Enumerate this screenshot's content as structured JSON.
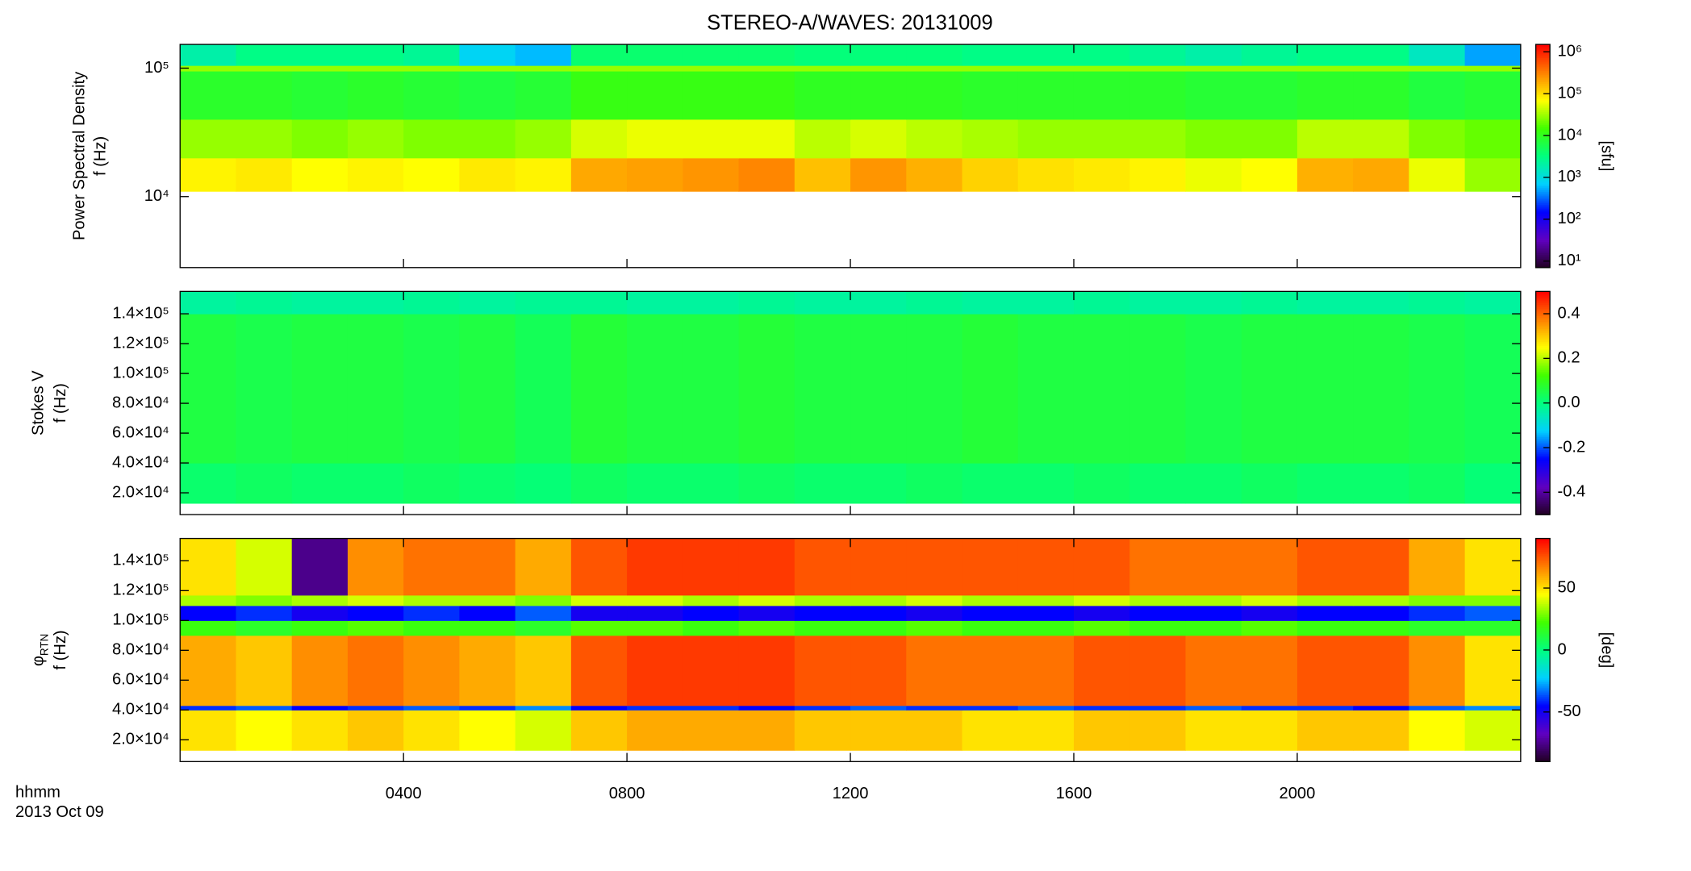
{
  "chart_data": [
    {
      "type": "heatmap",
      "title": "STEREO-A/WAVES: 20131009",
      "ylabel": "Power Spectral Density",
      "ylabel2": "f (Hz)",
      "yscale": "log",
      "ylim": [
        2800,
        153000
      ],
      "yticks": [
        {
          "value": 10000,
          "label": "10⁴"
        },
        {
          "value": 100000,
          "label": "10⁵"
        }
      ],
      "xlim": [
        0,
        24
      ],
      "x_bins": [
        0,
        1,
        2,
        3,
        4,
        5,
        6,
        7,
        8,
        9,
        10,
        11,
        12,
        13,
        14,
        15,
        16,
        17,
        18,
        19,
        20,
        21,
        22,
        23,
        24
      ],
      "y_bins": [
        11000,
        20000,
        40000,
        95000,
        105000,
        153000
      ],
      "z": [
        [
          80000,
          90000,
          70000,
          80000,
          70000,
          90000,
          80000,
          200000,
          220000,
          250000,
          300000,
          150000,
          250000,
          180000,
          120000,
          100000,
          90000,
          80000,
          60000,
          70000,
          180000,
          200000,
          60000,
          30000
        ],
        [
          30000,
          30000,
          25000,
          30000,
          25000,
          25000,
          30000,
          50000,
          60000,
          60000,
          60000,
          40000,
          50000,
          40000,
          35000,
          30000,
          30000,
          30000,
          25000,
          25000,
          40000,
          40000,
          25000,
          20000
        ],
        [
          9000,
          9000,
          8000,
          9000,
          8000,
          7000,
          8000,
          12000,
          12000,
          12000,
          12000,
          10000,
          10000,
          10000,
          9000,
          9000,
          9000,
          9000,
          8000,
          8000,
          9000,
          9000,
          7000,
          8000
        ],
        [
          30000,
          30000,
          30000,
          30000,
          30000,
          30000,
          30000,
          30000,
          30000,
          30000,
          30000,
          30000,
          30000,
          30000,
          30000,
          30000,
          30000,
          30000,
          30000,
          30000,
          30000,
          30000,
          30000,
          30000
        ],
        [
          2000,
          3000,
          3000,
          3000,
          2500,
          800,
          600,
          4000,
          4000,
          4000,
          4000,
          3500,
          3500,
          3500,
          3000,
          3000,
          3000,
          2500,
          2000,
          2500,
          3000,
          3000,
          1500,
          500
        ]
      ],
      "colormap": [
        "#200020",
        "#6000c0",
        "#0000ff",
        "#00d0ff",
        "#00ff80",
        "#40ff00",
        "#ffff00",
        "#ff8000",
        "#ff0000"
      ],
      "colorbar": {
        "scale": "log",
        "lim": [
          7,
          1500000
        ],
        "label": "[sfu]",
        "ticks": [
          {
            "value": 10,
            "label": "10¹"
          },
          {
            "value": 100,
            "label": "10²"
          },
          {
            "value": 1000,
            "label": "10³"
          },
          {
            "value": 10000,
            "label": "10⁴"
          },
          {
            "value": 100000,
            "label": "10⁵"
          },
          {
            "value": 1000000,
            "label": "10⁶"
          }
        ]
      }
    },
    {
      "type": "heatmap",
      "ylabel": "Stokes V",
      "ylabel2": "f (Hz)",
      "yscale": "linear",
      "ylim": [
        5400,
        155000
      ],
      "yticks": [
        {
          "value": 20000,
          "label": "2.0×10⁴"
        },
        {
          "value": 40000,
          "label": "4.0×10⁴"
        },
        {
          "value": 60000,
          "label": "6.0×10⁴"
        },
        {
          "value": 80000,
          "label": "8.0×10⁴"
        },
        {
          "value": 100000,
          "label": "1.0×10⁵"
        },
        {
          "value": 120000,
          "label": "1.2×10⁵"
        },
        {
          "value": 140000,
          "label": "1.4×10⁵"
        }
      ],
      "xlim": [
        0,
        24
      ],
      "x_bins": [
        0,
        1,
        2,
        3,
        4,
        5,
        6,
        7,
        8,
        9,
        10,
        11,
        12,
        13,
        14,
        15,
        16,
        17,
        18,
        19,
        20,
        21,
        22,
        23,
        24
      ],
      "y_bins": [
        13000,
        40000,
        140000,
        155000
      ],
      "z": [
        [
          0.02,
          0.03,
          0.02,
          0.02,
          0.03,
          0.02,
          0.01,
          0.03,
          0.02,
          0.02,
          0.03,
          0.02,
          0.02,
          0.03,
          0.02,
          0.02,
          0.03,
          0.02,
          0.02,
          0.03,
          0.02,
          0.02,
          0.03,
          0.01
        ],
        [
          0.06,
          0.05,
          0.06,
          0.06,
          0.05,
          0.06,
          0.04,
          0.07,
          0.06,
          0.06,
          0.07,
          0.06,
          0.06,
          0.06,
          0.07,
          0.06,
          0.06,
          0.06,
          0.05,
          0.06,
          0.06,
          0.06,
          0.05,
          0.04
        ],
        [
          -0.03,
          -0.02,
          -0.03,
          -0.03,
          -0.02,
          -0.03,
          -0.02,
          -0.02,
          -0.03,
          -0.03,
          -0.02,
          -0.03,
          -0.03,
          -0.02,
          -0.03,
          -0.03,
          -0.02,
          -0.03,
          -0.03,
          -0.02,
          -0.03,
          -0.03,
          -0.02,
          -0.03
        ]
      ],
      "colormap": [
        "#200020",
        "#6000c0",
        "#0000ff",
        "#00d0ff",
        "#00ff80",
        "#40ff00",
        "#ffff00",
        "#ff8000",
        "#ff0000"
      ],
      "colorbar": {
        "scale": "linear",
        "lim": [
          -0.5,
          0.5
        ],
        "ticks": [
          -0.4,
          -0.2,
          {
            "value": 0,
            "label": "0.0"
          },
          0.2,
          0.4
        ]
      }
    },
    {
      "type": "heatmap",
      "ylabel": "φ",
      "ylabel_sub": "RTN",
      "ylabel2": "f (Hz)",
      "yscale": "linear",
      "ylim": [
        5400,
        155000
      ],
      "yticks": [
        {
          "value": 20000,
          "label": "2.0×10⁴"
        },
        {
          "value": 40000,
          "label": "4.0×10⁴"
        },
        {
          "value": 60000,
          "label": "6.0×10⁴"
        },
        {
          "value": 80000,
          "label": "8.0×10⁴"
        },
        {
          "value": 100000,
          "label": "1.0×10⁵"
        },
        {
          "value": 120000,
          "label": "1.2×10⁵"
        },
        {
          "value": 140000,
          "label": "1.4×10⁵"
        }
      ],
      "xlim": [
        0,
        24
      ],
      "xticks": [
        {
          "value": 4,
          "label": "0400"
        },
        {
          "value": 8,
          "label": "0800"
        },
        {
          "value": 12,
          "label": "1200"
        },
        {
          "value": 16,
          "label": "1600"
        },
        {
          "value": 20,
          "label": "2000"
        }
      ],
      "xlabel": "hhmm",
      "date": "2013 Oct 09",
      "x_bins": [
        0,
        1,
        2,
        3,
        4,
        5,
        6,
        7,
        8,
        9,
        10,
        11,
        12,
        13,
        14,
        15,
        16,
        17,
        18,
        19,
        20,
        21,
        22,
        23,
        24
      ],
      "y_bins": [
        13000,
        40000,
        43000,
        90000,
        100000,
        110000,
        117000,
        155000
      ],
      "z": [
        [
          50,
          45,
          50,
          55,
          50,
          45,
          40,
          55,
          60,
          60,
          60,
          55,
          55,
          55,
          50,
          50,
          55,
          55,
          50,
          50,
          55,
          55,
          45,
          40
        ],
        [
          -40,
          -35,
          -45,
          -40,
          -35,
          -40,
          -30,
          -45,
          -40,
          -40,
          -45,
          -40,
          -35,
          -40,
          -40,
          -35,
          -40,
          -40,
          -35,
          -40,
          -40,
          -45,
          -35,
          -30
        ],
        [
          60,
          55,
          65,
          70,
          65,
          60,
          55,
          75,
          80,
          80,
          80,
          75,
          75,
          70,
          70,
          70,
          75,
          75,
          70,
          70,
          75,
          75,
          65,
          50
        ],
        [
          20,
          15,
          20,
          25,
          20,
          20,
          15,
          25,
          25,
          20,
          25,
          20,
          20,
          25,
          20,
          20,
          25,
          20,
          20,
          25,
          20,
          20,
          15,
          15
        ],
        [
          -45,
          -40,
          -50,
          -45,
          -40,
          -45,
          -35,
          -50,
          -50,
          -45,
          -50,
          -45,
          -45,
          -50,
          -45,
          -45,
          -50,
          -45,
          -45,
          -50,
          -45,
          -45,
          -40,
          -35
        ],
        [
          35,
          30,
          35,
          40,
          35,
          35,
          30,
          40,
          40,
          35,
          40,
          35,
          35,
          40,
          35,
          35,
          40,
          35,
          35,
          40,
          35,
          35,
          30,
          30
        ],
        [
          50,
          40,
          -75,
          65,
          70,
          70,
          60,
          75,
          80,
          80,
          80,
          75,
          75,
          75,
          75,
          75,
          75,
          70,
          70,
          70,
          75,
          75,
          60,
          50
        ]
      ],
      "colormap": [
        "#200020",
        "#6000c0",
        "#0000ff",
        "#00d0ff",
        "#00ff80",
        "#40ff00",
        "#ffff00",
        "#ff8000",
        "#ff0000"
      ],
      "colorbar": {
        "scale": "linear",
        "lim": [
          -90,
          90
        ],
        "label": "[deg]",
        "ticks": [
          -50,
          0,
          50
        ]
      }
    }
  ]
}
